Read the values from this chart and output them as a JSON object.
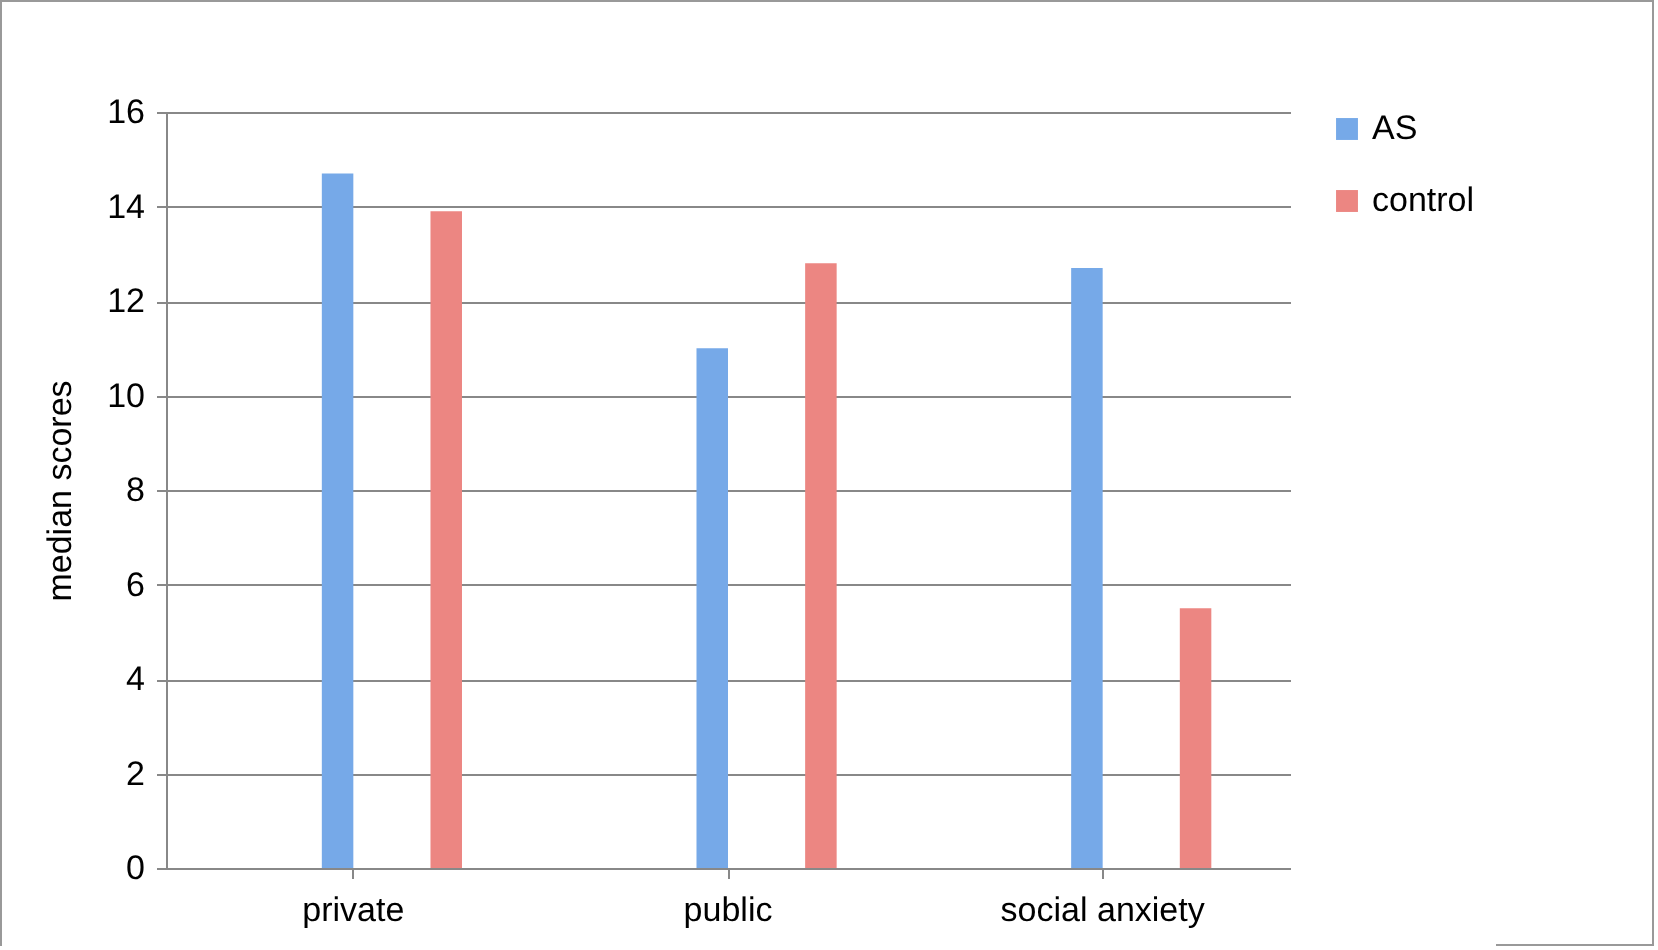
{
  "chart_data": {
    "type": "bar",
    "ylabel": "median scores",
    "categories": [
      "private",
      "public",
      "social anxiety"
    ],
    "series": [
      {
        "name": "AS",
        "color": "#76a9e8",
        "values": [
          14.7,
          11.0,
          12.7
        ]
      },
      {
        "name": "control",
        "color": "#ec8682",
        "values": [
          13.9,
          12.8,
          5.5
        ]
      }
    ],
    "ylim": [
      0,
      16
    ],
    "yticks": [
      0,
      2,
      4,
      6,
      8,
      10,
      12,
      14,
      16
    ],
    "grid": "y",
    "legend": "right"
  }
}
